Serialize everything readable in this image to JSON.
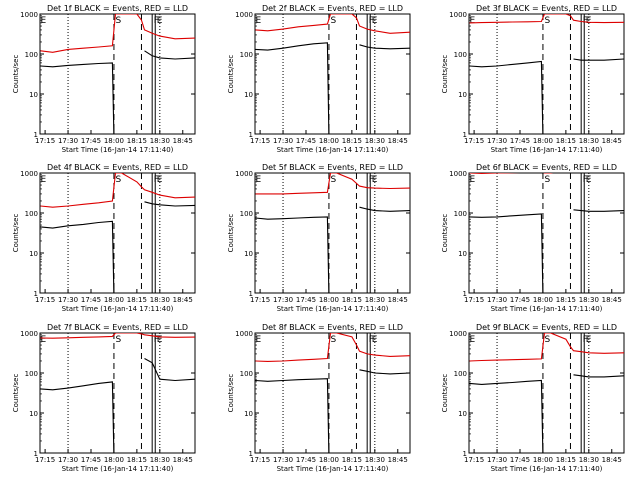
{
  "figure": {
    "x_tick_labels": [
      "17:15",
      "17:30",
      "17:45",
      "18:00",
      "18:15",
      "18:30",
      "18:45"
    ],
    "y_tick_labels": [
      "1",
      "10",
      "100",
      "1000"
    ],
    "ylabel": "Counts/sec",
    "xlabel": "Start Time (16-Jan-14 17:11:40)",
    "colors": {
      "events": "#000000",
      "lld": "#dd0000",
      "axes": "#000000"
    }
  },
  "chart_data": [
    {
      "type": "line",
      "title": "Det 1f BLACK = Events, RED = LLD",
      "xlim": [
        "17:11:40",
        "18:53"
      ],
      "ylim": [
        1,
        1000
      ],
      "yscale": "log",
      "markers": {
        "dotted": [
          "17:30",
          "18:30"
        ],
        "dashed": [
          "18:00",
          "18:18"
        ],
        "solid": [
          "18:25",
          "18:27"
        ]
      },
      "annotations": [
        {
          "text": "E",
          "x": "17:12"
        },
        {
          "text": "S",
          "x": "18:01"
        },
        {
          "text": "F",
          "x": "18:26"
        },
        {
          "text": "E",
          "x": "18:28"
        }
      ],
      "series": [
        {
          "name": "Events",
          "x": [
            "17:12",
            "17:20",
            "17:30",
            "17:40",
            "17:50",
            "17:59",
            "18:00",
            "18:18",
            "18:20",
            "18:25",
            "18:30",
            "18:40",
            "18:53"
          ],
          "values": [
            50,
            48,
            52,
            55,
            58,
            60,
            0,
            null,
            120,
            90,
            80,
            75,
            80
          ]
        },
        {
          "name": "LLD",
          "x": [
            "17:12",
            "17:20",
            "17:30",
            "17:40",
            "17:50",
            "17:59",
            "18:01",
            "18:05",
            "18:15",
            "18:18",
            "18:20",
            "18:25",
            "18:30",
            "18:40",
            "18:53"
          ],
          "values": [
            120,
            110,
            130,
            140,
            150,
            160,
            1000,
            1000,
            1000,
            700,
            400,
            330,
            280,
            240,
            250
          ]
        }
      ]
    },
    {
      "type": "line",
      "title": "Det 2f BLACK = Events, RED = LLD",
      "xlim": [
        "17:11:40",
        "18:53"
      ],
      "ylim": [
        1,
        1000
      ],
      "yscale": "log",
      "markers": {
        "dotted": [
          "17:30",
          "18:30"
        ],
        "dashed": [
          "18:00",
          "18:18"
        ],
        "solid": [
          "18:25",
          "18:27"
        ]
      },
      "annotations": [
        {
          "text": "E",
          "x": "17:12"
        },
        {
          "text": "S",
          "x": "18:01"
        },
        {
          "text": "F",
          "x": "18:26"
        },
        {
          "text": "E",
          "x": "18:28"
        }
      ],
      "series": [
        {
          "name": "Events",
          "x": [
            "17:12",
            "17:20",
            "17:30",
            "17:40",
            "17:50",
            "17:59",
            "18:00",
            "18:18",
            "18:20",
            "18:25",
            "18:30",
            "18:40",
            "18:53"
          ],
          "values": [
            130,
            125,
            140,
            160,
            180,
            190,
            0,
            null,
            170,
            150,
            140,
            135,
            140
          ]
        },
        {
          "name": "LLD",
          "x": [
            "17:12",
            "17:20",
            "17:30",
            "17:40",
            "17:50",
            "17:59",
            "18:01",
            "18:05",
            "18:15",
            "18:18",
            "18:20",
            "18:25",
            "18:30",
            "18:40",
            "18:53"
          ],
          "values": [
            400,
            380,
            420,
            480,
            520,
            560,
            1000,
            1000,
            1000,
            800,
            500,
            420,
            380,
            330,
            350
          ]
        }
      ]
    },
    {
      "type": "line",
      "title": "Det 3f BLACK = Events, RED = LLD",
      "xlim": [
        "17:11:40",
        "18:53"
      ],
      "ylim": [
        1,
        1000
      ],
      "yscale": "log",
      "markers": {
        "dotted": [
          "17:30",
          "18:30"
        ],
        "dashed": [
          "18:00",
          "18:18"
        ],
        "solid": [
          "18:25",
          "18:27"
        ]
      },
      "annotations": [
        {
          "text": "E",
          "x": "17:12"
        },
        {
          "text": "S",
          "x": "18:01"
        },
        {
          "text": "F",
          "x": "18:26"
        },
        {
          "text": "E",
          "x": "18:28"
        }
      ],
      "series": [
        {
          "name": "Events",
          "x": [
            "17:12",
            "17:20",
            "17:30",
            "17:40",
            "17:50",
            "17:59",
            "18:00",
            "18:18",
            "18:20",
            "18:25",
            "18:30",
            "18:40",
            "18:53"
          ],
          "values": [
            50,
            48,
            50,
            55,
            60,
            65,
            0,
            null,
            75,
            70,
            70,
            70,
            75
          ]
        },
        {
          "name": "LLD",
          "x": [
            "17:12",
            "17:20",
            "17:30",
            "17:40",
            "17:50",
            "17:59",
            "18:01",
            "18:05",
            "18:15",
            "18:18",
            "18:20",
            "18:25",
            "18:30",
            "18:40",
            "18:53"
          ],
          "values": [
            600,
            610,
            620,
            630,
            640,
            650,
            1000,
            1000,
            1000,
            900,
            700,
            650,
            620,
            610,
            620
          ]
        }
      ]
    },
    {
      "type": "line",
      "title": "Det 4f BLACK = Events, RED = LLD",
      "xlim": [
        "17:11:40",
        "18:53"
      ],
      "ylim": [
        1,
        1000
      ],
      "yscale": "log",
      "markers": {
        "dotted": [
          "17:30",
          "18:30"
        ],
        "dashed": [
          "18:00",
          "18:18"
        ],
        "solid": [
          "18:25",
          "18:27"
        ]
      },
      "annotations": [
        {
          "text": "E",
          "x": "17:12"
        },
        {
          "text": "S",
          "x": "18:01"
        },
        {
          "text": "F",
          "x": "18:26"
        },
        {
          "text": "E",
          "x": "18:28"
        }
      ],
      "series": [
        {
          "name": "Events",
          "x": [
            "17:12",
            "17:20",
            "17:30",
            "17:40",
            "17:50",
            "17:59",
            "18:00",
            "18:18",
            "18:20",
            "18:25",
            "18:30",
            "18:40",
            "18:53"
          ],
          "values": [
            45,
            42,
            48,
            52,
            58,
            62,
            0,
            null,
            190,
            170,
            160,
            150,
            155
          ]
        },
        {
          "name": "LLD",
          "x": [
            "17:12",
            "17:20",
            "17:30",
            "17:40",
            "17:50",
            "17:59",
            "18:01",
            "18:05",
            "18:15",
            "18:18",
            "18:20",
            "18:25",
            "18:30",
            "18:40",
            "18:53"
          ],
          "values": [
            150,
            140,
            150,
            165,
            180,
            200,
            1000,
            1000,
            600,
            450,
            380,
            330,
            280,
            240,
            250
          ]
        }
      ]
    },
    {
      "type": "line",
      "title": "Det 5f BLACK = Events, RED = LLD",
      "xlim": [
        "17:11:40",
        "18:53"
      ],
      "ylim": [
        1,
        1000
      ],
      "yscale": "log",
      "markers": {
        "dotted": [
          "17:30",
          "18:30"
        ],
        "dashed": [
          "18:00",
          "18:18"
        ],
        "solid": [
          "18:25",
          "18:27"
        ]
      },
      "annotations": [
        {
          "text": "E",
          "x": "17:12"
        },
        {
          "text": "S",
          "x": "18:01"
        },
        {
          "text": "F",
          "x": "18:26"
        },
        {
          "text": "E",
          "x": "18:28"
        }
      ],
      "series": [
        {
          "name": "Events",
          "x": [
            "17:12",
            "17:20",
            "17:30",
            "17:40",
            "17:50",
            "17:59",
            "18:00",
            "18:18",
            "18:20",
            "18:25",
            "18:30",
            "18:40",
            "18:53"
          ],
          "values": [
            75,
            70,
            72,
            75,
            78,
            80,
            0,
            null,
            140,
            125,
            115,
            110,
            115
          ]
        },
        {
          "name": "LLD",
          "x": [
            "17:12",
            "17:20",
            "17:30",
            "17:40",
            "17:50",
            "17:59",
            "18:01",
            "18:05",
            "18:15",
            "18:18",
            "18:20",
            "18:25",
            "18:30",
            "18:40",
            "18:53"
          ],
          "values": [
            300,
            300,
            300,
            310,
            320,
            330,
            1000,
            1000,
            700,
            550,
            470,
            430,
            420,
            410,
            420
          ]
        }
      ]
    },
    {
      "type": "line",
      "title": "Det 6f BLACK = Events, RED = LLD",
      "xlim": [
        "17:11:40",
        "18:53"
      ],
      "ylim": [
        1,
        1000
      ],
      "yscale": "log",
      "markers": {
        "dotted": [
          "17:30",
          "18:30"
        ],
        "dashed": [
          "18:00",
          "18:18"
        ],
        "solid": [
          "18:25",
          "18:27"
        ]
      },
      "annotations": [
        {
          "text": "E",
          "x": "17:12"
        },
        {
          "text": "S",
          "x": "18:01"
        },
        {
          "text": "F",
          "x": "18:26"
        },
        {
          "text": "E",
          "x": "18:28"
        }
      ],
      "series": [
        {
          "name": "Events",
          "x": [
            "17:12",
            "17:20",
            "17:30",
            "17:40",
            "17:50",
            "17:59",
            "18:00",
            "18:18",
            "18:20",
            "18:25",
            "18:30",
            "18:40",
            "18:53"
          ],
          "values": [
            80,
            78,
            80,
            85,
            90,
            95,
            0,
            null,
            120,
            115,
            110,
            110,
            115
          ]
        },
        {
          "name": "LLD",
          "x": [
            "17:12",
            "17:20",
            "17:30",
            "17:40",
            "17:50",
            "17:59",
            "18:01",
            "18:05",
            "18:15",
            "18:18",
            "18:20",
            "18:25",
            "18:30",
            "18:40",
            "18:53"
          ],
          "values": [
            1000,
            980,
            1000,
            1020,
            1050,
            1080,
            1000,
            1000,
            1200,
            1150,
            1120,
            1100,
            1100,
            1100,
            1100
          ]
        }
      ]
    },
    {
      "type": "line",
      "title": "Det 7f BLACK = Events, RED = LLD",
      "xlim": [
        "17:11:40",
        "18:53"
      ],
      "ylim": [
        1,
        1000
      ],
      "yscale": "log",
      "markers": {
        "dotted": [
          "17:30",
          "18:30"
        ],
        "dashed": [
          "18:00",
          "18:18"
        ],
        "solid": [
          "18:25",
          "18:27"
        ]
      },
      "annotations": [
        {
          "text": "E",
          "x": "17:12"
        },
        {
          "text": "S",
          "x": "18:01"
        },
        {
          "text": "F",
          "x": "18:26"
        },
        {
          "text": "E",
          "x": "18:28"
        }
      ],
      "series": [
        {
          "name": "Events",
          "x": [
            "17:12",
            "17:20",
            "17:30",
            "17:40",
            "17:50",
            "17:59",
            "18:00",
            "18:18",
            "18:20",
            "18:25",
            "18:30",
            "18:40",
            "18:53"
          ],
          "values": [
            40,
            38,
            42,
            48,
            55,
            60,
            0,
            null,
            230,
            180,
            70,
            65,
            70
          ]
        },
        {
          "name": "LLD",
          "x": [
            "17:12",
            "17:20",
            "17:30",
            "17:40",
            "17:50",
            "17:59",
            "18:01",
            "18:05",
            "18:15",
            "18:18",
            "18:20",
            "18:25",
            "18:30",
            "18:40",
            "18:53"
          ],
          "values": [
            750,
            740,
            760,
            780,
            800,
            820,
            1000,
            1000,
            1000,
            950,
            900,
            850,
            800,
            780,
            790
          ]
        }
      ]
    },
    {
      "type": "line",
      "title": "Det 8f BLACK = Events, RED = LLD",
      "xlim": [
        "17:11:40",
        "18:53"
      ],
      "ylim": [
        1,
        1000
      ],
      "yscale": "log",
      "markers": {
        "dotted": [
          "17:30",
          "18:30"
        ],
        "dashed": [
          "18:00",
          "18:18"
        ],
        "solid": [
          "18:25",
          "18:27"
        ]
      },
      "annotations": [
        {
          "text": "E",
          "x": "17:12"
        },
        {
          "text": "S",
          "x": "18:01"
        },
        {
          "text": "F",
          "x": "18:26"
        },
        {
          "text": "E",
          "x": "18:28"
        }
      ],
      "series": [
        {
          "name": "Events",
          "x": [
            "17:12",
            "17:20",
            "17:30",
            "17:40",
            "17:50",
            "17:59",
            "18:00",
            "18:18",
            "18:20",
            "18:25",
            "18:30",
            "18:40",
            "18:53"
          ],
          "values": [
            65,
            62,
            65,
            68,
            70,
            72,
            0,
            null,
            120,
            110,
            100,
            95,
            100
          ]
        },
        {
          "name": "LLD",
          "x": [
            "17:12",
            "17:20",
            "17:30",
            "17:40",
            "17:50",
            "17:59",
            "18:01",
            "18:05",
            "18:15",
            "18:18",
            "18:20",
            "18:25",
            "18:30",
            "18:40",
            "18:53"
          ],
          "values": [
            200,
            195,
            200,
            210,
            220,
            230,
            1000,
            1000,
            800,
            500,
            350,
            300,
            280,
            260,
            270
          ]
        }
      ]
    },
    {
      "type": "line",
      "title": "Det 9f BLACK = Events, RED = LLD",
      "xlim": [
        "17:11:40",
        "18:53"
      ],
      "ylim": [
        1,
        1000
      ],
      "yscale": "log",
      "markers": {
        "dotted": [
          "17:30",
          "18:30"
        ],
        "dashed": [
          "18:00",
          "18:18"
        ],
        "solid": [
          "18:25",
          "18:27"
        ]
      },
      "annotations": [
        {
          "text": "E",
          "x": "17:12"
        },
        {
          "text": "S",
          "x": "18:01"
        },
        {
          "text": "F",
          "x": "18:26"
        },
        {
          "text": "E",
          "x": "18:28"
        }
      ],
      "series": [
        {
          "name": "Events",
          "x": [
            "17:12",
            "17:20",
            "17:30",
            "17:40",
            "17:50",
            "17:59",
            "18:00",
            "18:18",
            "18:20",
            "18:25",
            "18:30",
            "18:40",
            "18:53"
          ],
          "values": [
            55,
            52,
            55,
            58,
            62,
            65,
            0,
            null,
            90,
            85,
            80,
            80,
            85
          ]
        },
        {
          "name": "LLD",
          "x": [
            "17:12",
            "17:20",
            "17:30",
            "17:40",
            "17:50",
            "17:59",
            "18:01",
            "18:05",
            "18:15",
            "18:18",
            "18:20",
            "18:25",
            "18:30",
            "18:40",
            "18:53"
          ],
          "values": [
            200,
            205,
            210,
            215,
            220,
            225,
            1000,
            1000,
            700,
            450,
            360,
            340,
            320,
            310,
            320
          ]
        }
      ]
    }
  ]
}
